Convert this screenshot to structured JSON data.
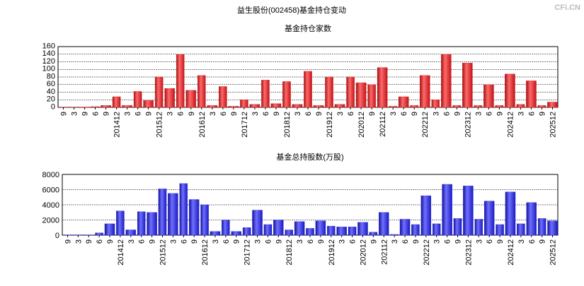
{
  "title": "益生股份(002458)基金持仓变动",
  "watermark": "CFi.CN",
  "chart_data": [
    {
      "type": "bar",
      "title": "基金持仓家数",
      "color": "#e02428",
      "categories": [
        "9",
        "3",
        "9",
        "6",
        "9",
        "201412",
        "3",
        "6",
        "9",
        "201512",
        "3",
        "6",
        "9",
        "201612",
        "3",
        "6",
        "9",
        "201712",
        "3",
        "6",
        "9",
        "201812",
        "3",
        "6",
        "9",
        "201912",
        "3",
        "6",
        "202012",
        "9",
        "202112",
        "3",
        "6",
        "9",
        "202212",
        "3",
        "6",
        "9",
        "202312",
        "3",
        "6",
        "9",
        "202412",
        "3",
        "6",
        "9",
        "202512"
      ],
      "values": [
        1,
        1,
        1,
        2,
        5,
        28,
        5,
        42,
        18,
        80,
        50,
        140,
        45,
        84,
        5,
        55,
        3,
        20,
        8,
        72,
        10,
        68,
        8,
        95,
        5,
        80,
        8,
        80,
        65,
        60,
        105,
        3,
        28,
        5,
        84,
        20,
        140,
        5,
        117,
        5,
        60,
        5,
        88,
        8,
        70,
        5,
        14
      ],
      "ylim": [
        0,
        160
      ],
      "yticks": [
        0,
        20,
        40,
        60,
        80,
        100,
        120,
        140,
        160
      ],
      "grid": true
    },
    {
      "type": "bar",
      "title": "基金总持股数(万股)",
      "color": "#2a2ae0",
      "categories": [
        "9",
        "3",
        "9",
        "6",
        "9",
        "201412",
        "3",
        "6",
        "9",
        "201512",
        "3",
        "6",
        "9",
        "201612",
        "3",
        "6",
        "9",
        "201712",
        "3",
        "6",
        "9",
        "201812",
        "3",
        "6",
        "9",
        "201912",
        "3",
        "6",
        "202012",
        "9",
        "202112",
        "3",
        "6",
        "9",
        "202212",
        "3",
        "6",
        "9",
        "202312",
        "3",
        "6",
        "9",
        "202412",
        "3",
        "6",
        "9",
        "202512"
      ],
      "values": [
        50,
        50,
        50,
        300,
        1500,
        3200,
        700,
        3100,
        3000,
        6100,
        5500,
        6800,
        4700,
        4000,
        500,
        2000,
        500,
        1000,
        3300,
        1400,
        2000,
        700,
        1800,
        900,
        1900,
        1200,
        1100,
        1100,
        1700,
        400,
        3000,
        100,
        2100,
        1400,
        5200,
        1500,
        6700,
        2200,
        6500,
        2100,
        4500,
        1400,
        5700,
        1500,
        4300,
        2200,
        1900
      ],
      "ylim": [
        0,
        8000
      ],
      "yticks": [
        0,
        2000,
        4000,
        6000,
        8000
      ],
      "grid": true
    }
  ]
}
